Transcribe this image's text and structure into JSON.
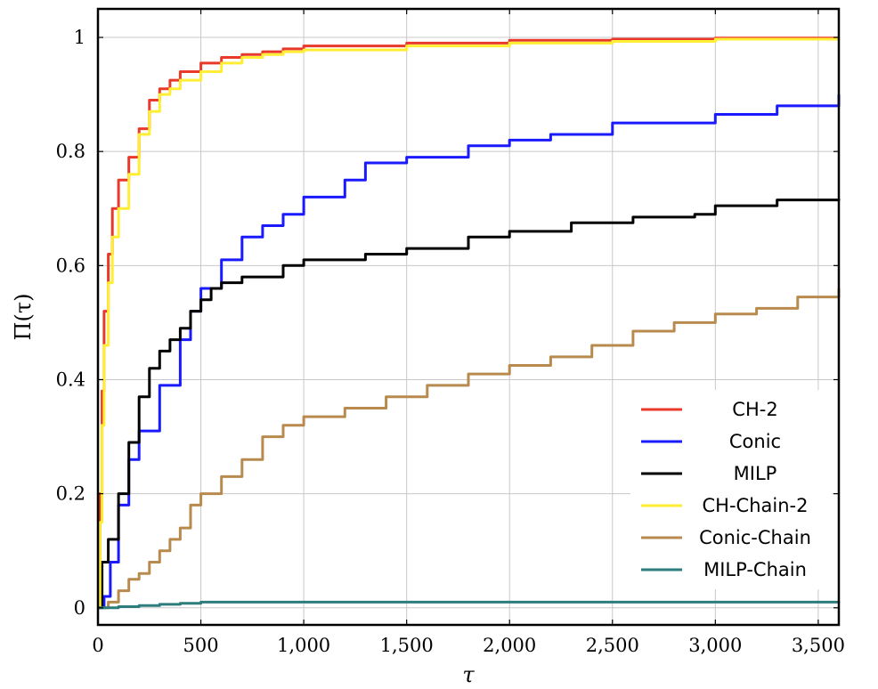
{
  "chart_data": {
    "type": "line",
    "xlabel": "τ",
    "ylabel": "Π(τ)",
    "xlim": [
      0,
      3600
    ],
    "ylim": [
      -0.03,
      1.05
    ],
    "grid": true,
    "legend_position": "bottom-right",
    "x_ticks": [
      0,
      500,
      1000,
      1500,
      2000,
      2500,
      3000,
      3500
    ],
    "x_tick_labels": [
      "0",
      "500",
      "1,000",
      "1,500",
      "2,000",
      "2,500",
      "3,000",
      "3,500"
    ],
    "y_ticks": [
      0,
      0.2,
      0.4,
      0.6,
      0.8,
      1
    ],
    "y_tick_labels": [
      "0",
      "0.2",
      "0.4",
      "0.6",
      "0.8",
      "1"
    ],
    "series": [
      {
        "name": "CH-2",
        "color": "#e8392a",
        "points": [
          [
            0,
            0
          ],
          [
            10,
            0.2
          ],
          [
            20,
            0.38
          ],
          [
            30,
            0.52
          ],
          [
            50,
            0.62
          ],
          [
            70,
            0.7
          ],
          [
            100,
            0.75
          ],
          [
            150,
            0.79
          ],
          [
            200,
            0.84
          ],
          [
            250,
            0.89
          ],
          [
            300,
            0.91
          ],
          [
            350,
            0.925
          ],
          [
            400,
            0.94
          ],
          [
            500,
            0.955
          ],
          [
            600,
            0.965
          ],
          [
            700,
            0.97
          ],
          [
            800,
            0.975
          ],
          [
            900,
            0.98
          ],
          [
            1000,
            0.985
          ],
          [
            1500,
            0.99
          ],
          [
            2000,
            0.995
          ],
          [
            2500,
            0.997
          ],
          [
            3000,
            0.999
          ],
          [
            3600,
            1.0
          ]
        ]
      },
      {
        "name": "Conic",
        "color": "#1a1aff",
        "points": [
          [
            0,
            0
          ],
          [
            30,
            0.02
          ],
          [
            60,
            0.08
          ],
          [
            100,
            0.18
          ],
          [
            150,
            0.26
          ],
          [
            200,
            0.31
          ],
          [
            300,
            0.39
          ],
          [
            400,
            0.47
          ],
          [
            450,
            0.52
          ],
          [
            500,
            0.56
          ],
          [
            600,
            0.61
          ],
          [
            700,
            0.65
          ],
          [
            800,
            0.67
          ],
          [
            900,
            0.69
          ],
          [
            1000,
            0.72
          ],
          [
            1200,
            0.75
          ],
          [
            1300,
            0.78
          ],
          [
            1500,
            0.79
          ],
          [
            1800,
            0.81
          ],
          [
            2000,
            0.82
          ],
          [
            2200,
            0.83
          ],
          [
            2500,
            0.85
          ],
          [
            3000,
            0.865
          ],
          [
            3300,
            0.88
          ],
          [
            3600,
            0.9
          ]
        ]
      },
      {
        "name": "MILP",
        "color": "#000000",
        "points": [
          [
            0,
            0
          ],
          [
            20,
            0.08
          ],
          [
            50,
            0.12
          ],
          [
            100,
            0.2
          ],
          [
            150,
            0.29
          ],
          [
            200,
            0.37
          ],
          [
            250,
            0.42
          ],
          [
            300,
            0.45
          ],
          [
            350,
            0.47
          ],
          [
            400,
            0.49
          ],
          [
            450,
            0.52
          ],
          [
            500,
            0.54
          ],
          [
            550,
            0.56
          ],
          [
            600,
            0.57
          ],
          [
            700,
            0.58
          ],
          [
            900,
            0.6
          ],
          [
            1000,
            0.61
          ],
          [
            1200,
            0.61
          ],
          [
            1300,
            0.62
          ],
          [
            1500,
            0.63
          ],
          [
            1800,
            0.65
          ],
          [
            2000,
            0.66
          ],
          [
            2300,
            0.675
          ],
          [
            2600,
            0.685
          ],
          [
            2900,
            0.69
          ],
          [
            3000,
            0.705
          ],
          [
            3300,
            0.715
          ],
          [
            3600,
            0.717
          ]
        ]
      },
      {
        "name": "CH-Chain-2",
        "color": "#ffee33",
        "points": [
          [
            0,
            0
          ],
          [
            10,
            0.15
          ],
          [
            20,
            0.32
          ],
          [
            30,
            0.46
          ],
          [
            50,
            0.57
          ],
          [
            70,
            0.65
          ],
          [
            100,
            0.7
          ],
          [
            150,
            0.76
          ],
          [
            200,
            0.83
          ],
          [
            250,
            0.87
          ],
          [
            300,
            0.9
          ],
          [
            350,
            0.91
          ],
          [
            400,
            0.925
          ],
          [
            500,
            0.94
          ],
          [
            600,
            0.955
          ],
          [
            700,
            0.965
          ],
          [
            800,
            0.97
          ],
          [
            900,
            0.975
          ],
          [
            1000,
            0.978
          ],
          [
            1500,
            0.985
          ],
          [
            2000,
            0.99
          ],
          [
            2500,
            0.993
          ],
          [
            3000,
            0.997
          ],
          [
            3600,
            1.0
          ]
        ]
      },
      {
        "name": "Conic-Chain",
        "color": "#b98a4e",
        "points": [
          [
            0,
            0
          ],
          [
            50,
            0.01
          ],
          [
            100,
            0.03
          ],
          [
            150,
            0.05
          ],
          [
            200,
            0.06
          ],
          [
            250,
            0.08
          ],
          [
            300,
            0.1
          ],
          [
            350,
            0.12
          ],
          [
            400,
            0.14
          ],
          [
            450,
            0.18
          ],
          [
            500,
            0.2
          ],
          [
            600,
            0.23
          ],
          [
            700,
            0.26
          ],
          [
            800,
            0.3
          ],
          [
            900,
            0.32
          ],
          [
            1000,
            0.335
          ],
          [
            1200,
            0.35
          ],
          [
            1400,
            0.37
          ],
          [
            1600,
            0.39
          ],
          [
            1800,
            0.41
          ],
          [
            2000,
            0.425
          ],
          [
            2200,
            0.44
          ],
          [
            2400,
            0.46
          ],
          [
            2600,
            0.485
          ],
          [
            2800,
            0.5
          ],
          [
            3000,
            0.515
          ],
          [
            3200,
            0.525
          ],
          [
            3400,
            0.545
          ],
          [
            3600,
            0.56
          ]
        ]
      },
      {
        "name": "MILP-Chain",
        "color": "#2d7d7d",
        "points": [
          [
            0,
            0
          ],
          [
            100,
            0.002
          ],
          [
            200,
            0.004
          ],
          [
            300,
            0.006
          ],
          [
            400,
            0.008
          ],
          [
            500,
            0.01
          ],
          [
            3600,
            0.011
          ]
        ]
      }
    ]
  }
}
